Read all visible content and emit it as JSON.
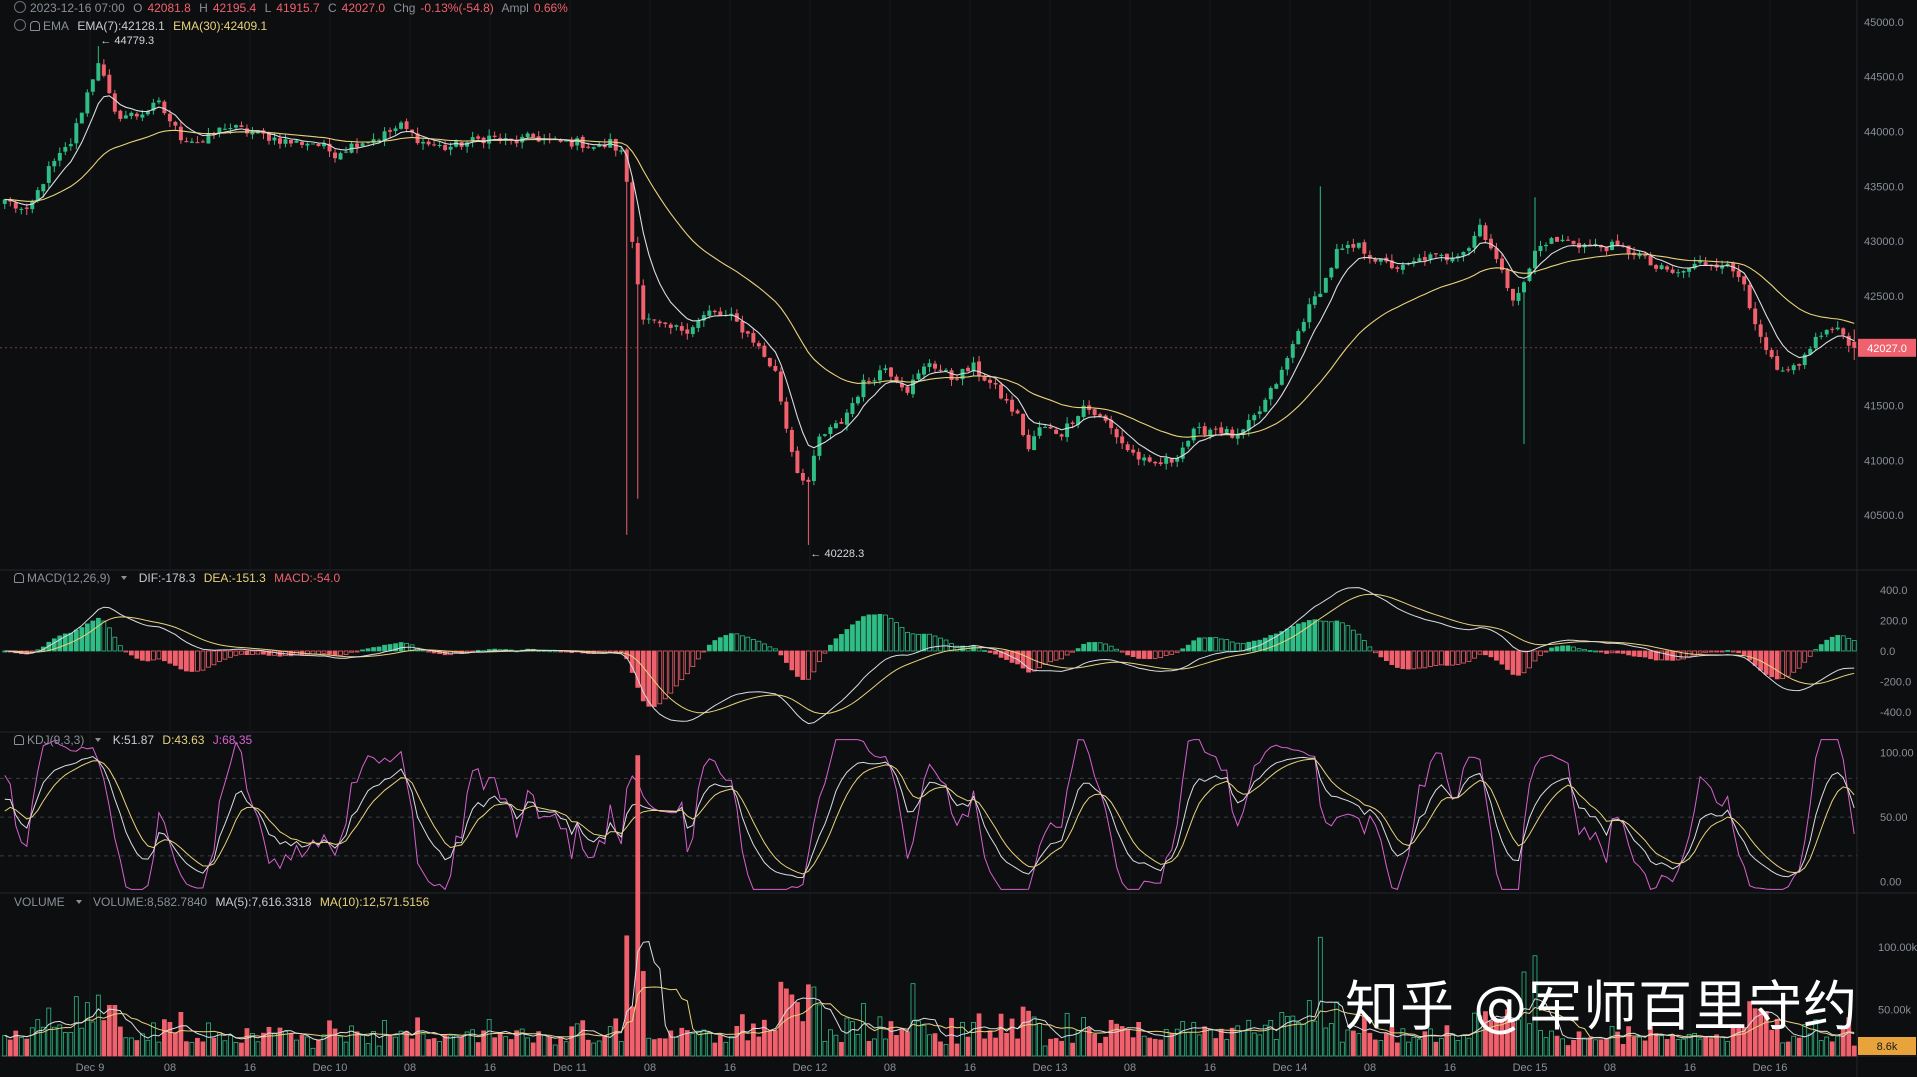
{
  "header": {
    "datetime": "2023-12-16 07:00",
    "open_label": "O",
    "open": "42081.8",
    "high_label": "H",
    "high": "42195.4",
    "low_label": "L",
    "low": "41915.7",
    "close_label": "C",
    "close": "42027.0",
    "chg_label": "Chg",
    "chg": "-0.13%(-54.8)",
    "ampl_label": "Ampl",
    "ampl": "0.66%",
    "ema_label": "EMA",
    "ema7": "EMA(7):42128.1",
    "ema30": "EMA(30):42409.1"
  },
  "macd_header": {
    "label": "MACD(12,26,9)",
    "dif": "DIF:-178.3",
    "dea": "DEA:-151.3",
    "macd": "MACD:-54.0"
  },
  "kdj_header": {
    "label": "KDJ(9,3,3)",
    "k": "K:51.87",
    "d": "D:43.63",
    "j": "J:68.35"
  },
  "volume_header": {
    "label": "VOLUME",
    "volume": "VOLUME:8,582.7840",
    "ma5": "MA(5):7,616.3318",
    "ma10": "MA(10):12,571.5156"
  },
  "watermark": "知乎 @军师百里守约",
  "colors": {
    "up": "#2ebd85",
    "down": "#f0616d",
    "ema7": "#d9dce1",
    "ema30": "#e9d27c",
    "j": "#d662d0",
    "bg": "#0d0e10"
  },
  "chart_data": {
    "type": "candlestick",
    "timeframe_hours": 1,
    "x_axis_labels": [
      "Dec 9",
      "08",
      "16",
      "Dec 10",
      "08",
      "16",
      "Dec 11",
      "08",
      "16",
      "Dec 12",
      "08",
      "16",
      "Dec 13",
      "08",
      "16",
      "Dec 14",
      "08",
      "16",
      "Dec 15",
      "08",
      "16",
      "Dec 16"
    ],
    "price_ticks": [
      "45000.0",
      "44500.0",
      "44000.0",
      "43500.0",
      "43000.0",
      "42500.0",
      "42000.0",
      "41500.0",
      "41000.0",
      "40500.0"
    ],
    "price_ylim": [
      40000,
      45200
    ],
    "last_price_label": "42027.0",
    "annotations": [
      {
        "text": "← 44779.3",
        "value": 44779.3
      },
      {
        "text": "← 40228.3",
        "value": 40228.3
      }
    ],
    "close_anchors": [
      [
        0,
        43380
      ],
      [
        4,
        43250
      ],
      [
        8,
        43650
      ],
      [
        12,
        43900
      ],
      [
        14,
        44200
      ],
      [
        17,
        44650
      ],
      [
        20,
        44150
      ],
      [
        24,
        44150
      ],
      [
        28,
        44250
      ],
      [
        32,
        43950
      ],
      [
        36,
        43900
      ],
      [
        40,
        44050
      ],
      [
        44,
        44000
      ],
      [
        48,
        43950
      ],
      [
        52,
        43900
      ],
      [
        56,
        43900
      ],
      [
        60,
        43800
      ],
      [
        64,
        43900
      ],
      [
        68,
        43950
      ],
      [
        72,
        44050
      ],
      [
        76,
        43900
      ],
      [
        80,
        43850
      ],
      [
        84,
        43900
      ],
      [
        88,
        43950
      ],
      [
        92,
        43900
      ],
      [
        96,
        43950
      ],
      [
        100,
        43900
      ],
      [
        104,
        43900
      ],
      [
        108,
        43850
      ],
      [
        110,
        43900
      ],
      [
        112,
        43800
      ],
      [
        113,
        43550
      ],
      [
        114,
        43000
      ],
      [
        116,
        42300
      ],
      [
        120,
        42200
      ],
      [
        124,
        42200
      ],
      [
        128,
        42350
      ],
      [
        132,
        42300
      ],
      [
        136,
        42100
      ],
      [
        140,
        41800
      ],
      [
        142,
        41300
      ],
      [
        144,
        40900
      ],
      [
        146,
        40800
      ],
      [
        148,
        41200
      ],
      [
        152,
        41350
      ],
      [
        156,
        41700
      ],
      [
        160,
        41850
      ],
      [
        164,
        41650
      ],
      [
        168,
        41900
      ],
      [
        172,
        41750
      ],
      [
        176,
        41850
      ],
      [
        180,
        41650
      ],
      [
        184,
        41400
      ],
      [
        186,
        41100
      ],
      [
        188,
        41300
      ],
      [
        192,
        41250
      ],
      [
        196,
        41500
      ],
      [
        200,
        41350
      ],
      [
        204,
        41100
      ],
      [
        208,
        40950
      ],
      [
        212,
        41000
      ],
      [
        216,
        41250
      ],
      [
        220,
        41300
      ],
      [
        224,
        41200
      ],
      [
        228,
        41450
      ],
      [
        232,
        41800
      ],
      [
        236,
        42300
      ],
      [
        240,
        42650
      ],
      [
        242,
        42900
      ],
      [
        246,
        42950
      ],
      [
        250,
        42800
      ],
      [
        254,
        42750
      ],
      [
        258,
        42850
      ],
      [
        262,
        42850
      ],
      [
        266,
        42950
      ],
      [
        268,
        43150
      ],
      [
        270,
        42950
      ],
      [
        272,
        42700
      ],
      [
        274,
        42500
      ],
      [
        276,
        42600
      ],
      [
        278,
        42900
      ],
      [
        280,
        43000
      ],
      [
        284,
        43000
      ],
      [
        288,
        42950
      ],
      [
        292,
        42950
      ],
      [
        296,
        42900
      ],
      [
        300,
        42750
      ],
      [
        304,
        42700
      ],
      [
        308,
        42800
      ],
      [
        312,
        42800
      ],
      [
        316,
        42650
      ],
      [
        318,
        42200
      ],
      [
        320,
        42000
      ],
      [
        322,
        41800
      ],
      [
        324,
        41800
      ],
      [
        326,
        41850
      ],
      [
        328,
        42050
      ],
      [
        330,
        42150
      ],
      [
        332,
        42200
      ],
      [
        334,
        42150
      ],
      [
        336,
        42027
      ]
    ],
    "bar_count": 337,
    "macd": {
      "ticks": [
        "400.0",
        "200.0",
        "0.0",
        "-200.0",
        "-400.0"
      ],
      "ylim": [
        -520,
        500
      ],
      "dif": -178.3,
      "dea": -151.3,
      "macd": -54.0
    },
    "kdj": {
      "ticks": [
        "100.00",
        "50.00",
        "0.00"
      ],
      "ylim": [
        -8,
        112
      ],
      "k": 51.87,
      "d": 43.63,
      "j": 68.35
    },
    "volume": {
      "ticks": [
        "100.00k",
        "50.00k"
      ],
      "ylim": [
        0,
        120000
      ],
      "last_label": "8.6k",
      "last": 8582.784,
      "ma5": 7616.3318,
      "ma10": 12571.5156
    }
  }
}
